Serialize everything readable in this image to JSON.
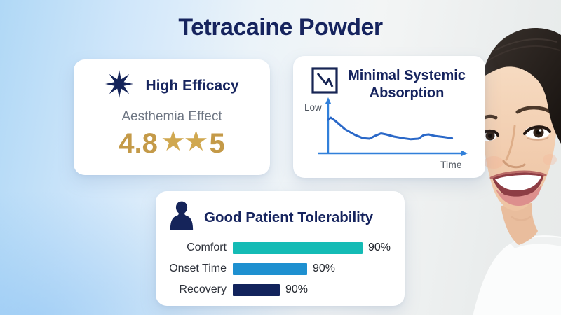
{
  "page": {
    "title": "Tetracaine Powder"
  },
  "cards": {
    "efficacy": {
      "icon": "starburst-icon",
      "title": "High Efficacy",
      "subtitle": "Aesthemia Effect",
      "rating": {
        "value": "4.8",
        "stars": "★★",
        "max": "5"
      }
    },
    "absorption": {
      "icon": "declining-line-chart-icon",
      "title_line1": "Minimal Systemic",
      "title_line2": "Absorption",
      "y_axis_label": "Low",
      "x_axis_label": "Time"
    },
    "tolerability": {
      "icon": "person-icon",
      "title": "Good Patient Tolerability",
      "rows": [
        {
          "label": "Comfort",
          "value": "90%"
        },
        {
          "label": "Onset Time",
          "value": "90%"
        },
        {
          "label": "Recovery",
          "value": "90%"
        }
      ]
    }
  },
  "photo": {
    "description": "smiling-woman-dark-hair-white-top-right-edge"
  },
  "colors": {
    "navy_text": "#16245e",
    "gold_rating": "#c49a48",
    "subtitle_gray": "#6e7683",
    "bar_teal": "#14bbb5",
    "bar_blue": "#1e90d0",
    "bar_navy": "#12235c",
    "chart_line": "#2a68c8",
    "chart_axis": "#3180da",
    "card_bg": "#ffffff",
    "bg_left_blue": "#b0d8f6",
    "bg_right_gray": "#e9ecec"
  },
  "chart_data": [
    {
      "id": "systemic-absorption-curve",
      "type": "line",
      "title": "Minimal Systemic Absorption",
      "xlabel": "Time",
      "ylabel": "Low",
      "x_ticks": [],
      "y_ticks": [],
      "axis_note": "qualitative unlabeled axes; 'Low' at top of y-axis, 'Time' at right end of x-axis; initial spike then low plateau with two small bumps",
      "units": "percent of axis span (x: 0-100 time, y: 0-100 level)",
      "points": [
        [
          0,
          64
        ],
        [
          2,
          68
        ],
        [
          5,
          63
        ],
        [
          13,
          46
        ],
        [
          21,
          35
        ],
        [
          27,
          29
        ],
        [
          32,
          28
        ],
        [
          36,
          33
        ],
        [
          41,
          38
        ],
        [
          45,
          36
        ],
        [
          51,
          32
        ],
        [
          58,
          29
        ],
        [
          64,
          27
        ],
        [
          70,
          28
        ],
        [
          74,
          35
        ],
        [
          78,
          36
        ],
        [
          83,
          33
        ],
        [
          90,
          31
        ],
        [
          96,
          29
        ]
      ]
    },
    {
      "id": "patient-tolerability-bars",
      "type": "bar",
      "title": "Good Patient Tolerability",
      "categories": [
        "Comfort",
        "Onset Time",
        "Recovery"
      ],
      "values": [
        90,
        90,
        90
      ],
      "value_labels": [
        "90%",
        "90%",
        "90%"
      ],
      "colors": [
        "#14bbb5",
        "#1e90d0",
        "#12235c"
      ],
      "drawn_fractions": [
        1.0,
        0.573,
        0.362
      ],
      "note": "all bars labeled 90% although drawn lengths differ",
      "legend": "none",
      "grid": false
    }
  ]
}
